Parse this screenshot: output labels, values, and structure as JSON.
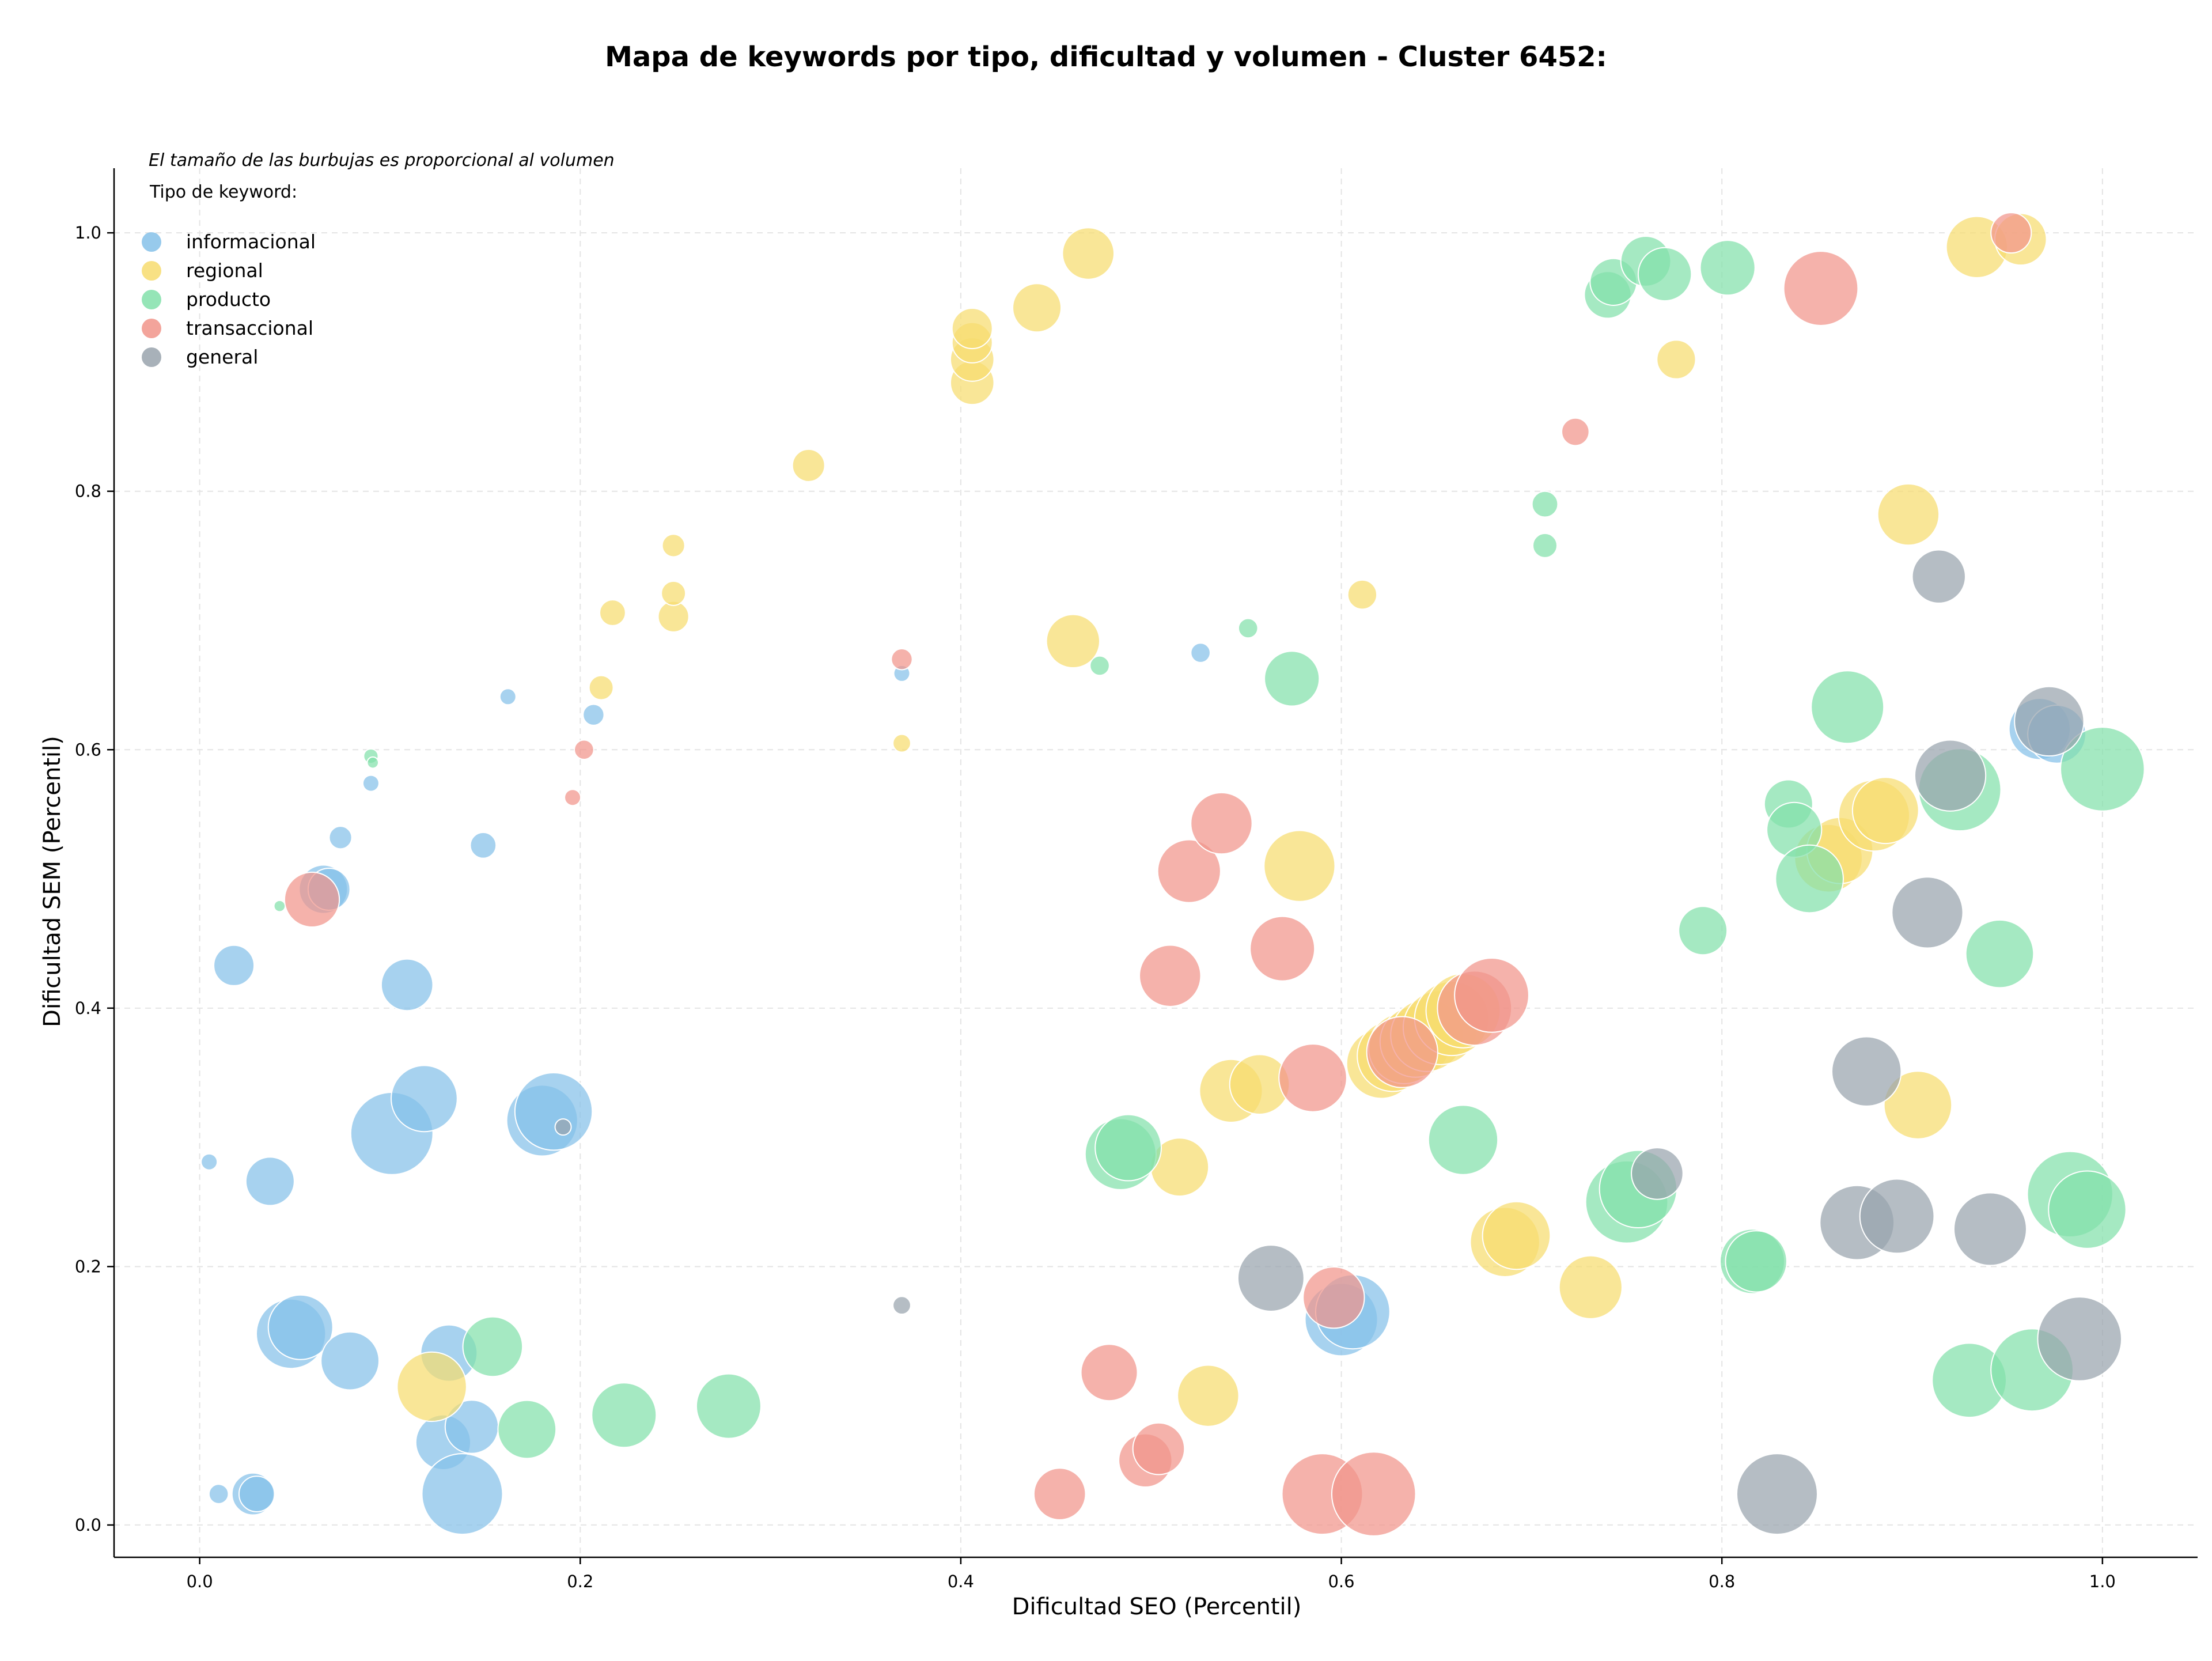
{
  "chart_data": {
    "type": "scatter",
    "title": "Mapa de keywords por tipo, dificultad y volumen - Cluster 6452:",
    "xlabel": "Dificultad SEO (Percentil)",
    "ylabel": "Dificultad SEM (Percentil)",
    "xlim": [
      -0.045,
      1.05
    ],
    "ylim": [
      -0.025,
      1.05
    ],
    "xticks": [
      0.0,
      0.2,
      0.4,
      0.6,
      0.8,
      1.0
    ],
    "yticks": [
      0.0,
      0.2,
      0.4,
      0.6,
      0.8,
      1.0
    ],
    "xtick_labels": [
      "0.0",
      "0.2",
      "0.4",
      "0.6",
      "0.8",
      "1.0"
    ],
    "ytick_labels": [
      "0.0",
      "0.2",
      "0.4",
      "0.6",
      "0.8",
      "1.0"
    ],
    "grid": true,
    "note": "El tamaño de las burbujas es proporcional al volumen",
    "legend_title": "Tipo de keyword:",
    "legend_position": "top-left",
    "series": [
      {
        "name": "informacional",
        "color": "#85c1e9",
        "points": [
          [
            0.005,
            0.281,
            1
          ],
          [
            0.01,
            0.024,
            1.2
          ],
          [
            0.028,
            0.024,
            2.6
          ],
          [
            0.03,
            0.024,
            2.2
          ],
          [
            0.018,
            0.433,
            2.5
          ],
          [
            0.037,
            0.266,
            3
          ],
          [
            0.048,
            0.148,
            4.3
          ],
          [
            0.053,
            0.153,
            4
          ],
          [
            0.065,
            0.492,
            3
          ],
          [
            0.068,
            0.492,
            2.6
          ],
          [
            0.074,
            0.532,
            1.4
          ],
          [
            0.079,
            0.127,
            3.6
          ],
          [
            0.09,
            0.574,
            1
          ],
          [
            0.101,
            0.303,
            5.1
          ],
          [
            0.109,
            0.418,
            3.2
          ],
          [
            0.118,
            0.33,
            4.1
          ],
          [
            0.128,
            0.064,
            3.4
          ],
          [
            0.131,
            0.133,
            3.5
          ],
          [
            0.138,
            0.024,
            5
          ],
          [
            0.143,
            0.076,
            3.3
          ],
          [
            0.149,
            0.526,
            1.6
          ],
          [
            0.162,
            0.641,
            1
          ],
          [
            0.18,
            0.313,
            4.4
          ],
          [
            0.186,
            0.32,
            4.8
          ],
          [
            0.207,
            0.627,
            1.3
          ],
          [
            0.369,
            0.659,
            1
          ],
          [
            0.526,
            0.675,
            1.2
          ],
          [
            0.6,
            0.159,
            4.5
          ],
          [
            0.606,
            0.165,
            4.6
          ],
          [
            0.967,
            0.616,
            3.8
          ],
          [
            0.976,
            0.612,
            3.6
          ]
        ]
      },
      {
        "name": "regional",
        "color": "#f7dc6f",
        "points": [
          [
            0.122,
            0.107,
            4.3
          ],
          [
            0.211,
            0.648,
            1.5
          ],
          [
            0.217,
            0.706,
            1.6
          ],
          [
            0.249,
            0.703,
            1.9
          ],
          [
            0.249,
            0.721,
            1.5
          ],
          [
            0.249,
            0.758,
            1.4
          ],
          [
            0.32,
            0.82,
            2
          ],
          [
            0.369,
            0.605,
            1.1
          ],
          [
            0.406,
            0.884,
            2.7
          ],
          [
            0.406,
            0.902,
            2.7
          ],
          [
            0.406,
            0.915,
            2.5
          ],
          [
            0.406,
            0.926,
            2.5
          ],
          [
            0.44,
            0.942,
            3
          ],
          [
            0.459,
            0.684,
            3.3
          ],
          [
            0.467,
            0.984,
            3.2
          ],
          [
            0.515,
            0.277,
            3.6
          ],
          [
            0.53,
            0.1,
            3.8
          ],
          [
            0.542,
            0.336,
            3.9
          ],
          [
            0.557,
            0.341,
            3.7
          ],
          [
            0.578,
            0.51,
            4.4
          ],
          [
            0.611,
            0.72,
            1.8
          ],
          [
            0.621,
            0.357,
            4.3
          ],
          [
            0.627,
            0.363,
            4.4
          ],
          [
            0.633,
            0.369,
            4.4
          ],
          [
            0.639,
            0.374,
            4.4
          ],
          [
            0.645,
            0.379,
            4.5
          ],
          [
            0.652,
            0.385,
            4.6
          ],
          [
            0.658,
            0.392,
            4.6
          ],
          [
            0.664,
            0.398,
            4.6
          ],
          [
            0.686,
            0.219,
            4.3
          ],
          [
            0.692,
            0.224,
            4.2
          ],
          [
            0.731,
            0.184,
            3.9
          ],
          [
            0.776,
            0.902,
            2.4
          ],
          [
            0.856,
            0.516,
            4.2
          ],
          [
            0.862,
            0.522,
            4.1
          ],
          [
            0.88,
            0.549,
            4.4
          ],
          [
            0.886,
            0.553,
            4.1
          ],
          [
            0.898,
            0.782,
            3.8
          ],
          [
            0.903,
            0.325,
            4.2
          ],
          [
            0.934,
            0.989,
            3.8
          ],
          [
            0.957,
            0.995,
            3.2
          ]
        ]
      },
      {
        "name": "producto",
        "color": "#82e0aa",
        "points": [
          [
            0.042,
            0.479,
            0.7
          ],
          [
            0.09,
            0.595,
            0.9
          ],
          [
            0.091,
            0.59,
            0.7
          ],
          [
            0.154,
            0.138,
            3.7
          ],
          [
            0.172,
            0.074,
            3.6
          ],
          [
            0.223,
            0.085,
            4
          ],
          [
            0.278,
            0.092,
            4
          ],
          [
            0.473,
            0.665,
            1.2
          ],
          [
            0.484,
            0.287,
            4.4
          ],
          [
            0.488,
            0.292,
            4.1
          ],
          [
            0.551,
            0.694,
            1.2
          ],
          [
            0.574,
            0.655,
            3.4
          ],
          [
            0.664,
            0.298,
            4.3
          ],
          [
            0.707,
            0.79,
            1.6
          ],
          [
            0.707,
            0.758,
            1.5
          ],
          [
            0.74,
            0.952,
            2.9
          ],
          [
            0.743,
            0.962,
            2.9
          ],
          [
            0.75,
            0.25,
            5.1
          ],
          [
            0.756,
            0.26,
            4.8
          ],
          [
            0.76,
            0.978,
            3.1
          ],
          [
            0.77,
            0.968,
            3.3
          ],
          [
            0.79,
            0.46,
            3
          ],
          [
            0.803,
            0.973,
            3.4
          ],
          [
            0.816,
            0.204,
            4
          ],
          [
            0.818,
            0.204,
            3.8
          ],
          [
            0.835,
            0.558,
            3
          ],
          [
            0.838,
            0.538,
            3.4
          ],
          [
            0.846,
            0.5,
            4.2
          ],
          [
            0.866,
            0.633,
            4.5
          ],
          [
            0.925,
            0.569,
            5.1
          ],
          [
            0.93,
            0.112,
            4.6
          ],
          [
            0.946,
            0.442,
            4.2
          ],
          [
            0.963,
            0.12,
            5.1
          ],
          [
            0.983,
            0.256,
            5.3
          ],
          [
            0.992,
            0.244,
            4.8
          ],
          [
            1.0,
            0.585,
            5.2
          ]
        ]
      },
      {
        "name": "transaccional",
        "color": "#f1948a",
        "points": [
          [
            0.059,
            0.484,
            3.4
          ],
          [
            0.196,
            0.563,
            1
          ],
          [
            0.202,
            0.6,
            1.2
          ],
          [
            0.369,
            0.67,
            1.3
          ],
          [
            0.452,
            0.024,
            3.2
          ],
          [
            0.478,
            0.118,
            3.5
          ],
          [
            0.497,
            0.05,
            3.3
          ],
          [
            0.504,
            0.059,
            3.2
          ],
          [
            0.51,
            0.425,
            3.8
          ],
          [
            0.52,
            0.506,
            3.9
          ],
          [
            0.537,
            0.543,
            3.8
          ],
          [
            0.569,
            0.446,
            4
          ],
          [
            0.585,
            0.346,
            4.2
          ],
          [
            0.59,
            0.024,
            5
          ],
          [
            0.596,
            0.176,
            3.8
          ],
          [
            0.617,
            0.024,
            5.2
          ],
          [
            0.632,
            0.366,
            4.4
          ],
          [
            0.67,
            0.4,
            4.6
          ],
          [
            0.679,
            0.41,
            4.6
          ],
          [
            0.723,
            0.846,
            1.7
          ],
          [
            0.852,
            0.957,
            4.6
          ],
          [
            0.952,
            1.0,
            2.5
          ]
        ]
      },
      {
        "name": "general",
        "color": "#99a3ad",
        "points": [
          [
            0.191,
            0.308,
            1
          ],
          [
            0.369,
            0.17,
            1.1
          ],
          [
            0.563,
            0.191,
            4.1
          ],
          [
            0.766,
            0.272,
            3.2
          ],
          [
            0.829,
            0.024,
            5
          ],
          [
            0.871,
            0.234,
            4.6
          ],
          [
            0.876,
            0.351,
            4.3
          ],
          [
            0.892,
            0.239,
            4.6
          ],
          [
            0.908,
            0.474,
            4.4
          ],
          [
            0.914,
            0.734,
            3.3
          ],
          [
            0.92,
            0.58,
            4.4
          ],
          [
            0.941,
            0.229,
            4.5
          ],
          [
            0.972,
            0.622,
            4.3
          ],
          [
            0.988,
            0.144,
            5.2
          ]
        ]
      }
    ]
  }
}
